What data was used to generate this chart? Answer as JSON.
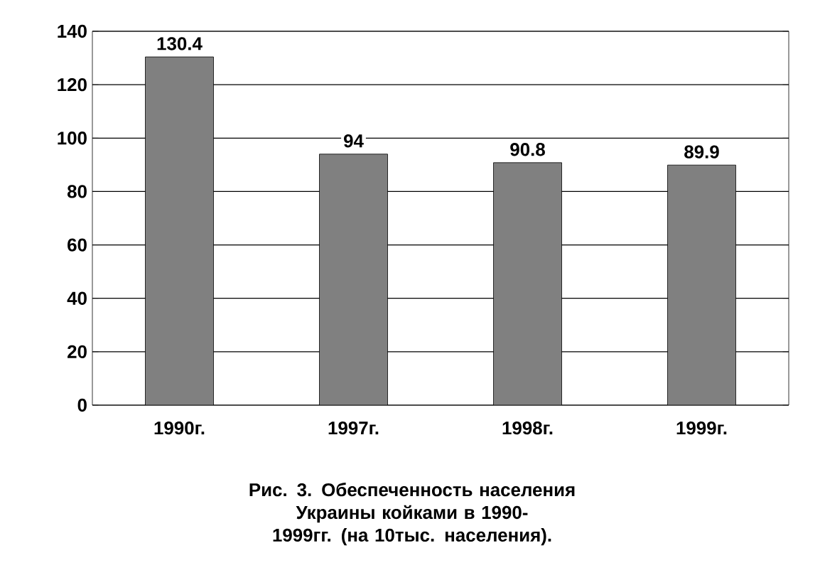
{
  "chart_data": {
    "type": "bar",
    "categories": [
      "1990г.",
      "1997г.",
      "1998г.",
      "1999г."
    ],
    "values": [
      130.4,
      94,
      90.8,
      89.9
    ],
    "color": "#808080",
    "ylim": [
      0,
      140
    ],
    "yticks": [
      0,
      20,
      40,
      60,
      80,
      100,
      120,
      140
    ],
    "grid": "y",
    "data_labels": true,
    "legend": false,
    "annotations": [
      "Рис. 3. Обеспеченность населения Украины койками в 1990-1999гг. (на 10тыс. населения)."
    ]
  }
}
